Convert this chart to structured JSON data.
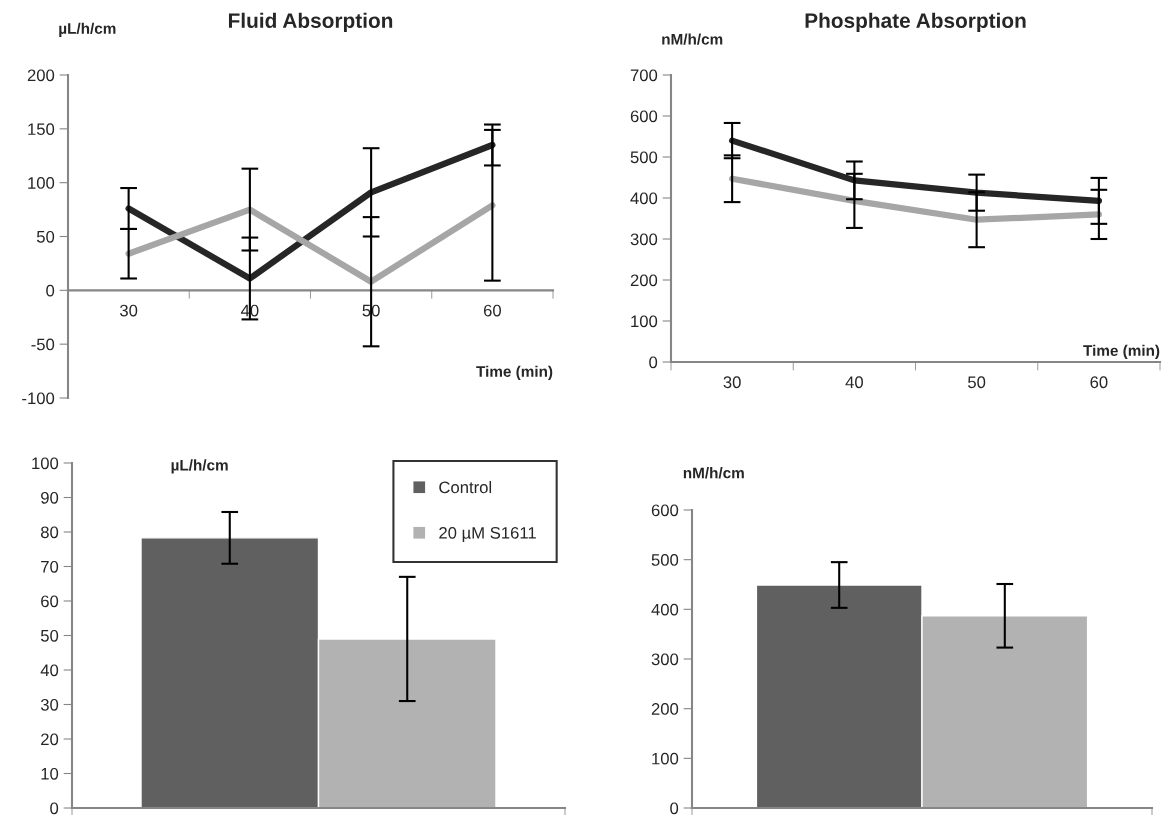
{
  "chart_data": [
    {
      "type": "line",
      "title": "Fluid Absorption",
      "ylabel": "µL/h/cm",
      "xlabel": "Time (min)",
      "categories": [
        "30",
        "40",
        "50",
        "60"
      ],
      "ylim": [
        -100,
        200
      ],
      "yticks": [
        -100,
        -50,
        0,
        50,
        100,
        150,
        200
      ],
      "grid": false,
      "legend": false,
      "series": [
        {
          "color": "#262626",
          "values": [
            76,
            11,
            91,
            135
          ],
          "errors": [
            19,
            38,
            41,
            19
          ]
        },
        {
          "color": "#a6a6a6",
          "values": [
            34,
            75,
            8,
            79
          ],
          "errors": [
            23,
            38,
            60,
            70
          ]
        }
      ]
    },
    {
      "type": "line",
      "title": "Phosphate Absorption",
      "ylabel": "nM/h/cm",
      "xlabel": "Time (min)",
      "categories": [
        "30",
        "40",
        "50",
        "60"
      ],
      "ylim": [
        0,
        700
      ],
      "yticks": [
        0,
        100,
        200,
        300,
        400,
        500,
        600,
        700
      ],
      "grid": false,
      "legend": false,
      "series": [
        {
          "color": "#262626",
          "values": [
            540,
            443,
            413,
            393
          ],
          "errors": [
            43,
            46,
            44,
            56
          ]
        },
        {
          "color": "#a6a6a6",
          "values": [
            447,
            393,
            347,
            360
          ],
          "errors": [
            57,
            66,
            67,
            60
          ]
        }
      ]
    },
    {
      "type": "bar",
      "ylabel": "µL/h/cm",
      "categories": [
        null
      ],
      "ylim": [
        0,
        100
      ],
      "yticks": [
        0,
        10,
        20,
        30,
        40,
        50,
        60,
        70,
        80,
        90,
        100
      ],
      "grid": false,
      "legend": "top right",
      "series": [
        {
          "name": "Control",
          "color": "#606060",
          "values": [
            78.3
          ],
          "errors": [
            7.5
          ]
        },
        {
          "name": "20 µM S1611",
          "color": "#b2b2b2",
          "values": [
            49
          ],
          "errors": [
            18
          ]
        }
      ]
    },
    {
      "type": "bar",
      "ylabel": "nM/h/cm",
      "categories": [
        null
      ],
      "ylim": [
        0,
        600
      ],
      "yticks": [
        0,
        100,
        200,
        300,
        400,
        500,
        600
      ],
      "grid": false,
      "legend": false,
      "series": [
        {
          "color": "#606060",
          "values": [
            449
          ],
          "errors": [
            46
          ]
        },
        {
          "color": "#b2b2b2",
          "values": [
            387
          ],
          "errors": [
            64
          ]
        }
      ]
    }
  ]
}
